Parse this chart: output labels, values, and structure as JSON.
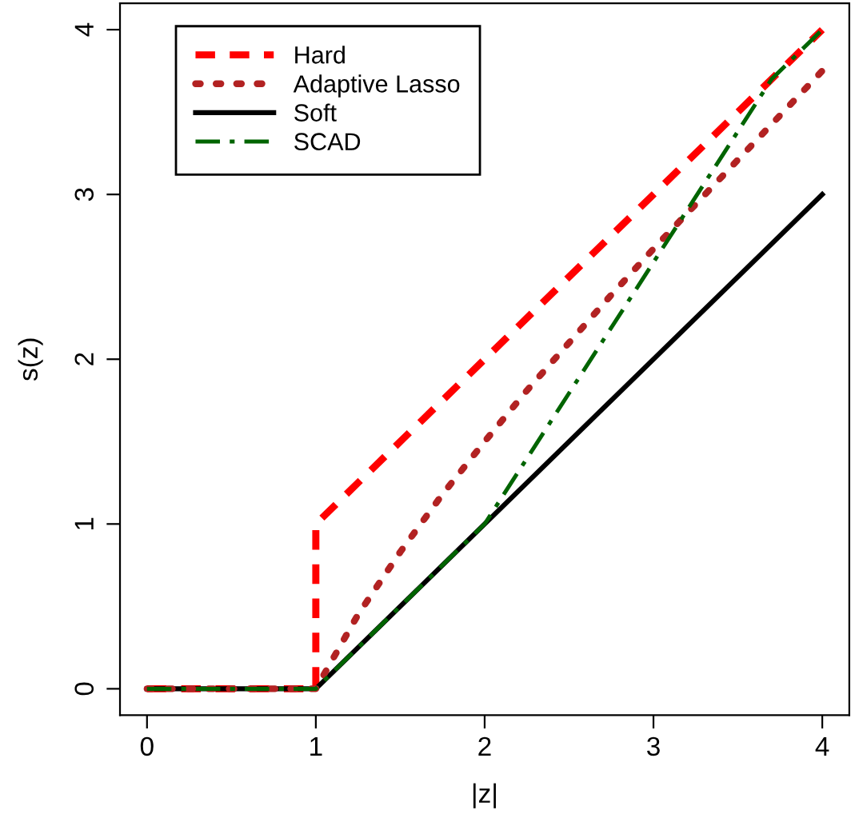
{
  "chart_data": {
    "type": "line",
    "xlabel": "|z|",
    "ylabel": "s(z)",
    "xlim": [
      -0.16,
      4.16
    ],
    "ylim": [
      -0.16,
      4.16
    ],
    "xticks": [
      0,
      1,
      2,
      3,
      4
    ],
    "yticks": [
      0,
      1,
      2,
      3,
      4
    ],
    "grid": false,
    "legend": "top left",
    "marker": "none",
    "series": [
      {
        "name": "Hard",
        "color": "#ff0000",
        "line_style": "dashed",
        "x": [
          0,
          1,
          1,
          4
        ],
        "values": [
          0,
          0,
          1,
          4
        ]
      },
      {
        "name": "Adaptive Lasso",
        "color": "#b22222",
        "line_style": "dotted",
        "x": [
          0,
          1,
          1.25,
          1.5,
          1.75,
          2,
          2.25,
          2.5,
          2.75,
          3,
          3.25,
          3.5,
          3.75,
          4
        ],
        "values": [
          0,
          0,
          0.45,
          0.83,
          1.18,
          1.5,
          1.81,
          2.1,
          2.39,
          2.67,
          2.94,
          3.21,
          3.48,
          3.75
        ]
      },
      {
        "name": "Soft",
        "color": "#000000",
        "line_style": "solid",
        "x": [
          0,
          1,
          4
        ],
        "values": [
          0,
          0,
          3
        ]
      },
      {
        "name": "SCAD",
        "color": "#006400",
        "line_style": "dashdot",
        "x": [
          0,
          1,
          2,
          3.7,
          4
        ],
        "values": [
          0,
          0,
          1,
          3.7,
          4
        ]
      }
    ]
  }
}
